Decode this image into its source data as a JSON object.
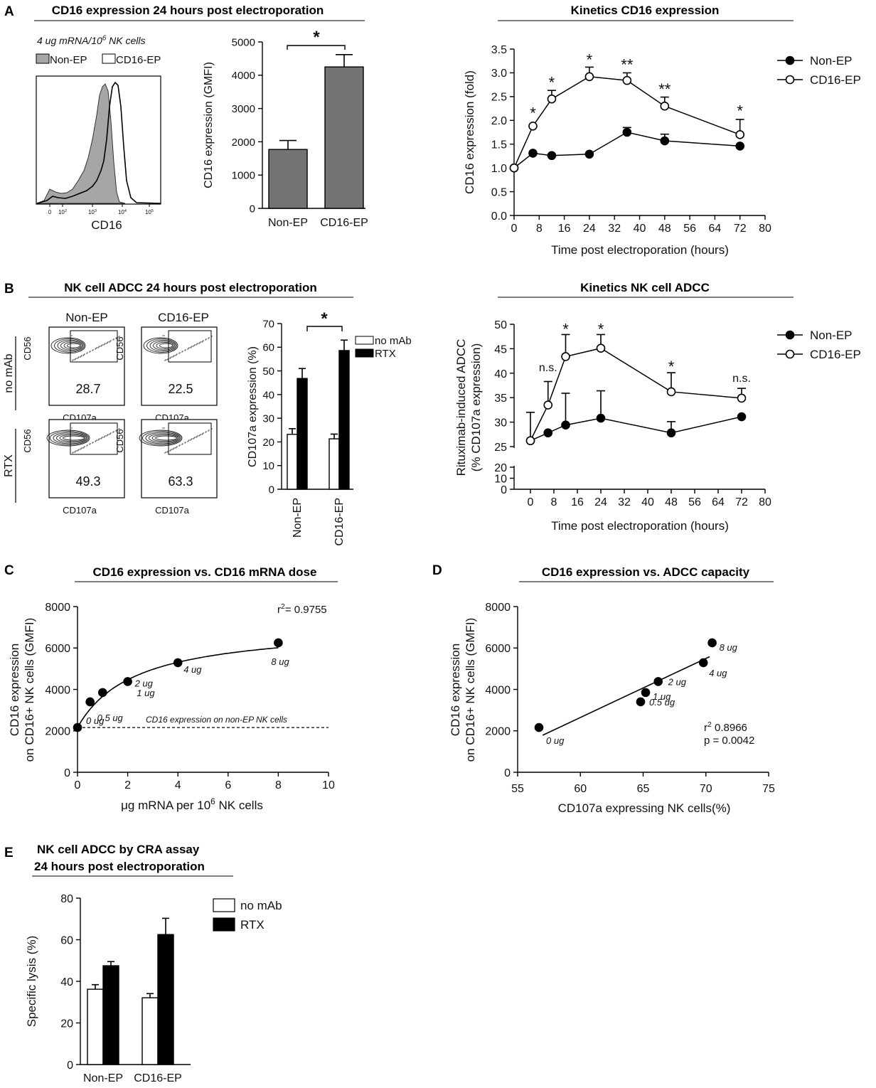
{
  "panel_labels": {
    "a": "A",
    "b": "B",
    "c": "C",
    "d": "D",
    "e": "E"
  },
  "panel_a": {
    "title": "CD16 expression 24 hours post electroporation",
    "subtitle_prefix": "4 ug mRNA/10",
    "subtitle_exp": "6",
    "subtitle_suffix": " NK cells",
    "histogram": {
      "legend": [
        "Non-EP",
        "CD16-EP"
      ],
      "xlabel": "CD16",
      "ticks": [
        {
          "b": "0",
          "e": ""
        },
        {
          "b": "10",
          "e": "2"
        },
        {
          "b": "10",
          "e": "3"
        },
        {
          "b": "10",
          "e": "4"
        },
        {
          "b": "10",
          "e": "5"
        }
      ]
    }
  },
  "panel_b": {
    "title": "NK cell ADCC 24 hours post electroporation",
    "flow": {
      "columns": [
        "Non-EP",
        "CD16-EP"
      ],
      "rows": [
        "no mAb",
        "RTX"
      ],
      "values": [
        [
          "28.7",
          "22.5"
        ],
        [
          "49.3",
          "63.3"
        ]
      ],
      "ylabel": "CD56",
      "xlabel": "CD107a"
    }
  },
  "panel_e_title": [
    "NK cell ADCC by CRA assay",
    "24 hours post electroporation"
  ],
  "chart_data": [
    {
      "id": "a_bar",
      "type": "bar",
      "categories": [
        "Non-EP",
        "CD16-EP"
      ],
      "values": [
        1770,
        4250
      ],
      "errors": [
        270,
        370
      ],
      "ylabel": "CD16 expression (GMFI)",
      "ylim": [
        0,
        5000
      ],
      "yticks": [
        0,
        1000,
        2000,
        3000,
        4000,
        5000
      ],
      "significance": "*",
      "color": "#737373"
    },
    {
      "id": "a_kinetics",
      "type": "line",
      "title": "Kinetics CD16 expression",
      "xlabel": "Time post electroporation (hours)",
      "ylabel": "CD16 expression (fold)",
      "xlim": [
        0,
        80
      ],
      "xticks": [
        0,
        8,
        16,
        24,
        32,
        40,
        48,
        56,
        64,
        72,
        80
      ],
      "ylim": [
        0,
        3.5
      ],
      "yticks": [
        "0.0",
        "0.5",
        "1.0",
        "1.5",
        "2.0",
        "2.5",
        "3.0",
        "3.5"
      ],
      "series": [
        {
          "name": "Non-EP",
          "marker": "filled",
          "x": [
            0,
            6,
            12,
            24,
            36,
            48,
            72
          ],
          "y": [
            1.0,
            1.31,
            1.26,
            1.29,
            1.75,
            1.57,
            1.46
          ],
          "err": [
            0,
            0,
            0,
            0,
            0.1,
            0.14,
            0
          ]
        },
        {
          "name": "CD16-EP",
          "marker": "open",
          "x": [
            0,
            6,
            12,
            24,
            36,
            48,
            72
          ],
          "y": [
            1.0,
            1.88,
            2.45,
            2.92,
            2.84,
            2.3,
            1.7
          ],
          "err": [
            0,
            0,
            0.18,
            0.2,
            0.16,
            0.19,
            0.32
          ]
        }
      ],
      "annotations": [
        {
          "x": 6,
          "y": 2.18,
          "text": "*"
        },
        {
          "x": 12,
          "y": 2.82,
          "text": "*"
        },
        {
          "x": 24,
          "y": 3.3,
          "text": "*"
        },
        {
          "x": 36,
          "y": 3.19,
          "text": "**"
        },
        {
          "x": 48,
          "y": 2.68,
          "text": "**"
        },
        {
          "x": 72,
          "y": 2.22,
          "text": "*"
        }
      ]
    },
    {
      "id": "b_bar",
      "type": "bar",
      "categories": [
        "Non-EP",
        "CD16-EP"
      ],
      "series": [
        {
          "name": "no mAb",
          "values": [
            23.2,
            21.3
          ],
          "errors": [
            2.4,
            2.0
          ],
          "color": "#ffffff"
        },
        {
          "name": "RTX",
          "values": [
            46.8,
            58.6
          ],
          "errors": [
            4.2,
            4.4
          ],
          "color": "#000000"
        }
      ],
      "ylabel": "CD107a expression (%)",
      "ylim": [
        0,
        70
      ],
      "yticks": [
        0,
        10,
        20,
        30,
        40,
        50,
        60,
        70
      ],
      "significance": "*"
    },
    {
      "id": "b_kinetics",
      "type": "line",
      "title": "Kinetics NK cell ADCC",
      "xlabel": "Time post electroporation (hours)",
      "ylabel": [
        "Rituximab-induced ADCC",
        "(% CD107a expression)"
      ],
      "xlim": [
        0,
        80
      ],
      "xticks": [
        0,
        8,
        16,
        24,
        32,
        40,
        48,
        56,
        64,
        72,
        80
      ],
      "ylim_upper": [
        25,
        50
      ],
      "yticks_upper": [
        25,
        30,
        35,
        40,
        45,
        50
      ],
      "yticks_lower": [
        0,
        10,
        20
      ],
      "series": [
        {
          "name": "Non-EP",
          "marker": "filled",
          "x": [
            0,
            6,
            12,
            24,
            48,
            72
          ],
          "y": [
            26.2,
            27.8,
            29.4,
            30.8,
            27.8,
            31.1
          ],
          "err": [
            5.8,
            0,
            6.5,
            5.6,
            2.3,
            0
          ]
        },
        {
          "name": "CD16-EP",
          "marker": "open",
          "x": [
            0,
            6,
            12,
            24,
            48,
            72
          ],
          "y": [
            26.2,
            33.5,
            43.4,
            45.1,
            36.2,
            34.9
          ],
          "err": [
            0,
            4.8,
            4.5,
            2.8,
            3.9,
            2.0
          ]
        }
      ],
      "annotations": [
        {
          "x": 6,
          "y": 40.4,
          "text": "n.s."
        },
        {
          "x": 12,
          "y": 49.2,
          "text": "*"
        },
        {
          "x": 24,
          "y": 49.2,
          "text": "*"
        },
        {
          "x": 48,
          "y": 41.6,
          "text": "*"
        },
        {
          "x": 72,
          "y": 38.2,
          "text": "n.s."
        }
      ]
    },
    {
      "id": "c_dose",
      "type": "scatter",
      "title": "CD16 expression vs. CD16 mRNA dose",
      "xlabel_prefix": "μg mRNA per 10",
      "xlabel_exp": "6",
      "xlabel_suffix": " NK cells",
      "ylabel": [
        "CD16 expression",
        "on CD16+ NK cells (GMFI)"
      ],
      "xlim": [
        0,
        10
      ],
      "xticks": [
        0,
        2,
        4,
        6,
        8,
        10
      ],
      "ylim": [
        0,
        8000
      ],
      "yticks": [
        0,
        2000,
        4000,
        6000,
        8000
      ],
      "points": [
        {
          "x": 0,
          "y": 2160,
          "label": "0 ug"
        },
        {
          "x": 0.5,
          "y": 3400,
          "label": "0.5 ug"
        },
        {
          "x": 1,
          "y": 3850,
          "label": "1 ug"
        },
        {
          "x": 2,
          "y": 4380,
          "label": "2 ug"
        },
        {
          "x": 4,
          "y": 5290,
          "label": "4 ug"
        },
        {
          "x": 8,
          "y": 6250,
          "label": "8 ug"
        }
      ],
      "fit": {
        "type": "hyperbolic",
        "y0": 2160,
        "bmax": 4960,
        "k": 2.3
      },
      "baseline": {
        "y": 2160,
        "label": "CD16 expression on non-EP NK cells"
      },
      "r2_label": "r",
      "r2_exp": "2",
      "r2_value": "= 0.9755"
    },
    {
      "id": "d_adcc",
      "type": "scatter",
      "title": "CD16 expression vs. ADCC capacity",
      "xlabel": "CD107a expressing NK cells(%)",
      "ylabel": [
        "CD16 expression",
        "on CD16+ NK cells (GMFI)"
      ],
      "xlim": [
        55,
        75
      ],
      "xticks": [
        55,
        60,
        65,
        70,
        75
      ],
      "ylim": [
        0,
        8000
      ],
      "yticks": [
        0,
        2000,
        4000,
        6000,
        8000
      ],
      "points": [
        {
          "x": 56.7,
          "y": 2160,
          "label": "0 ug"
        },
        {
          "x": 64.8,
          "y": 3400,
          "label": "0.5 ug"
        },
        {
          "x": 65.2,
          "y": 3850,
          "label": "1 ug"
        },
        {
          "x": 66.2,
          "y": 4380,
          "label": "2 ug"
        },
        {
          "x": 69.8,
          "y": 5290,
          "label": "4 ug"
        },
        {
          "x": 70.5,
          "y": 6250,
          "label": "8 ug"
        }
      ],
      "fit": {
        "type": "linear",
        "x": [
          57,
          70.3
        ],
        "y": [
          1790,
          5580
        ]
      },
      "r2_label": "r",
      "r2_exp": "2",
      "r2_value": "0.8966",
      "p_label": "p = 0.0042"
    },
    {
      "id": "e_cra",
      "type": "bar",
      "categories": [
        "Non-EP",
        "CD16-EP"
      ],
      "series": [
        {
          "name": "no mAb",
          "values": [
            36.2,
            32.1
          ],
          "errors": [
            2.2,
            2.0
          ],
          "color": "#ffffff"
        },
        {
          "name": "RTX",
          "values": [
            47.5,
            62.5
          ],
          "errors": [
            2.0,
            7.8
          ],
          "color": "#000000"
        }
      ],
      "ylabel": "Specific lysis (%)",
      "ylim": [
        0,
        80
      ],
      "yticks": [
        0,
        20,
        40,
        60,
        80
      ]
    }
  ]
}
